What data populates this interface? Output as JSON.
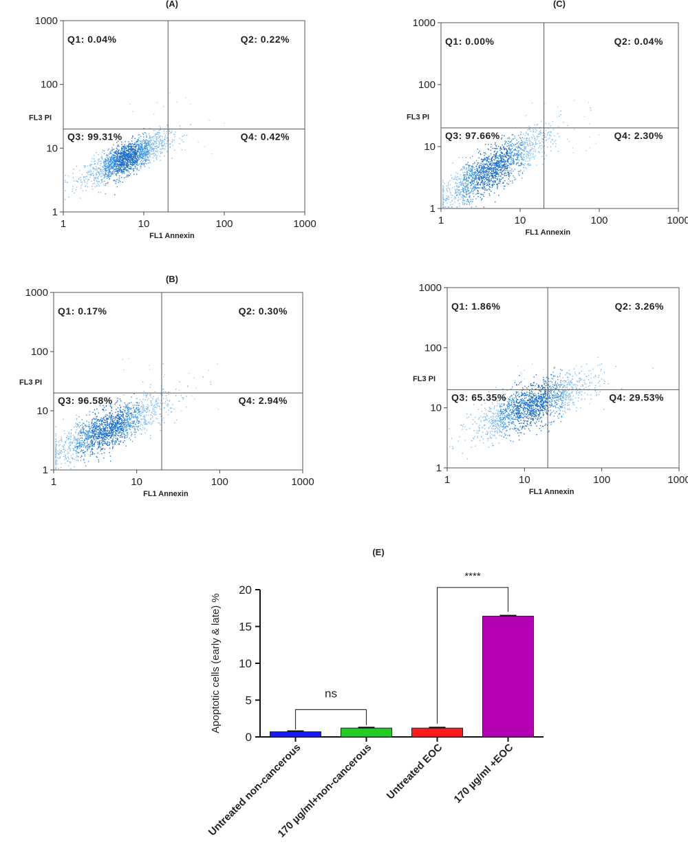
{
  "chart_data": [
    {
      "type": "scatter",
      "panel_label": "(A)",
      "xlabel": "FL1 Annexin",
      "ylabel": "FL3 PI",
      "x_scale": "log",
      "y_scale": "log",
      "xlim": [
        1,
        1000
      ],
      "ylim": [
        1,
        1000
      ],
      "x_ticks": [
        "1",
        "10",
        "100",
        "1000"
      ],
      "y_ticks": [
        "1",
        "10",
        "100",
        "1000"
      ],
      "gate": {
        "x": 20,
        "y": 20
      },
      "quadrants": {
        "Q1": "Q1: 0.04%",
        "Q2": "Q2: 0.22%",
        "Q3": "Q3: 99.31%",
        "Q4": "Q4: 0.42%"
      },
      "population": {
        "center": [
          6,
          7
        ],
        "spread": 0.22,
        "tilt": 0.55
      }
    },
    {
      "type": "scatter",
      "panel_label": "(B)",
      "xlabel": "FL1 Annexin",
      "ylabel": "FL3 PI",
      "x_scale": "log",
      "y_scale": "log",
      "xlim": [
        1,
        1000
      ],
      "ylim": [
        1,
        1000
      ],
      "x_ticks": [
        "1",
        "10",
        "100",
        "1000"
      ],
      "y_ticks": [
        "1",
        "10",
        "100",
        "1000"
      ],
      "gate": {
        "x": 20,
        "y": 20
      },
      "quadrants": {
        "Q1": "Q1: 0.17%",
        "Q2": "Q2: 0.30%",
        "Q3": "Q3: 96.58%",
        "Q4": "Q4: 2.94%"
      },
      "population": {
        "center": [
          4.5,
          5
        ],
        "spread": 0.3,
        "tilt": 0.6
      }
    },
    {
      "type": "scatter",
      "panel_label": "(C)",
      "xlabel": "FL1 Annexin",
      "ylabel": "FL3 PI",
      "x_scale": "log",
      "y_scale": "log",
      "xlim": [
        1,
        1000
      ],
      "ylim": [
        1,
        1000
      ],
      "x_ticks": [
        "1",
        "10",
        "100",
        "1000"
      ],
      "y_ticks": [
        "1",
        "10",
        "100",
        "1000"
      ],
      "gate": {
        "x": 20,
        "y": 20
      },
      "quadrants": {
        "Q1": "Q1: 0.00%",
        "Q2": "Q2: 0.04%",
        "Q3": "Q3: 97.66%",
        "Q4": "Q4: 2.30%"
      },
      "population": {
        "center": [
          4.5,
          4.5
        ],
        "spread": 0.3,
        "tilt": 0.75
      }
    },
    {
      "type": "scatter",
      "panel_label": "",
      "xlabel": "FL1 Annexin",
      "ylabel": "FL3 PI",
      "x_scale": "log",
      "y_scale": "log",
      "xlim": [
        1,
        1000
      ],
      "ylim": [
        1,
        1000
      ],
      "x_ticks": [
        "1",
        "10",
        "100",
        "1000"
      ],
      "y_ticks": [
        "1",
        "10",
        "100",
        "1000"
      ],
      "gate": {
        "x": 20,
        "y": 20
      },
      "quadrants": {
        "Q1": "Q1: 1.86%",
        "Q2": "Q2: 3.26%",
        "Q3": "Q3: 65.35%",
        "Q4": "Q4: 29.53%"
      },
      "population": {
        "center": [
          12,
          11
        ],
        "spread": 0.32,
        "tilt": 0.5
      }
    },
    {
      "type": "bar",
      "panel_label": "(E)",
      "title": "",
      "xlabel": "",
      "ylabel": "Apoptotic cells (early & late) %",
      "ylim": [
        0,
        20
      ],
      "y_ticks": [
        "0",
        "5",
        "10",
        "15",
        "20"
      ],
      "categories": [
        "Untreated non-cancerous",
        "170 µg/ml+non-cancerous",
        "Untreated EOC",
        "170 µg/ml +EOC"
      ],
      "values": [
        0.7,
        1.2,
        1.2,
        16.4
      ],
      "errors": [
        0.1,
        0.08,
        0.08,
        0.08
      ],
      "colors": [
        "#1a1aff",
        "#22cc22",
        "#ff1a1a",
        "#b300b3"
      ],
      "comparisons": [
        {
          "from": 0,
          "to": 1,
          "label": "ns"
        },
        {
          "from": 2,
          "to": 3,
          "label": "****"
        }
      ]
    }
  ]
}
